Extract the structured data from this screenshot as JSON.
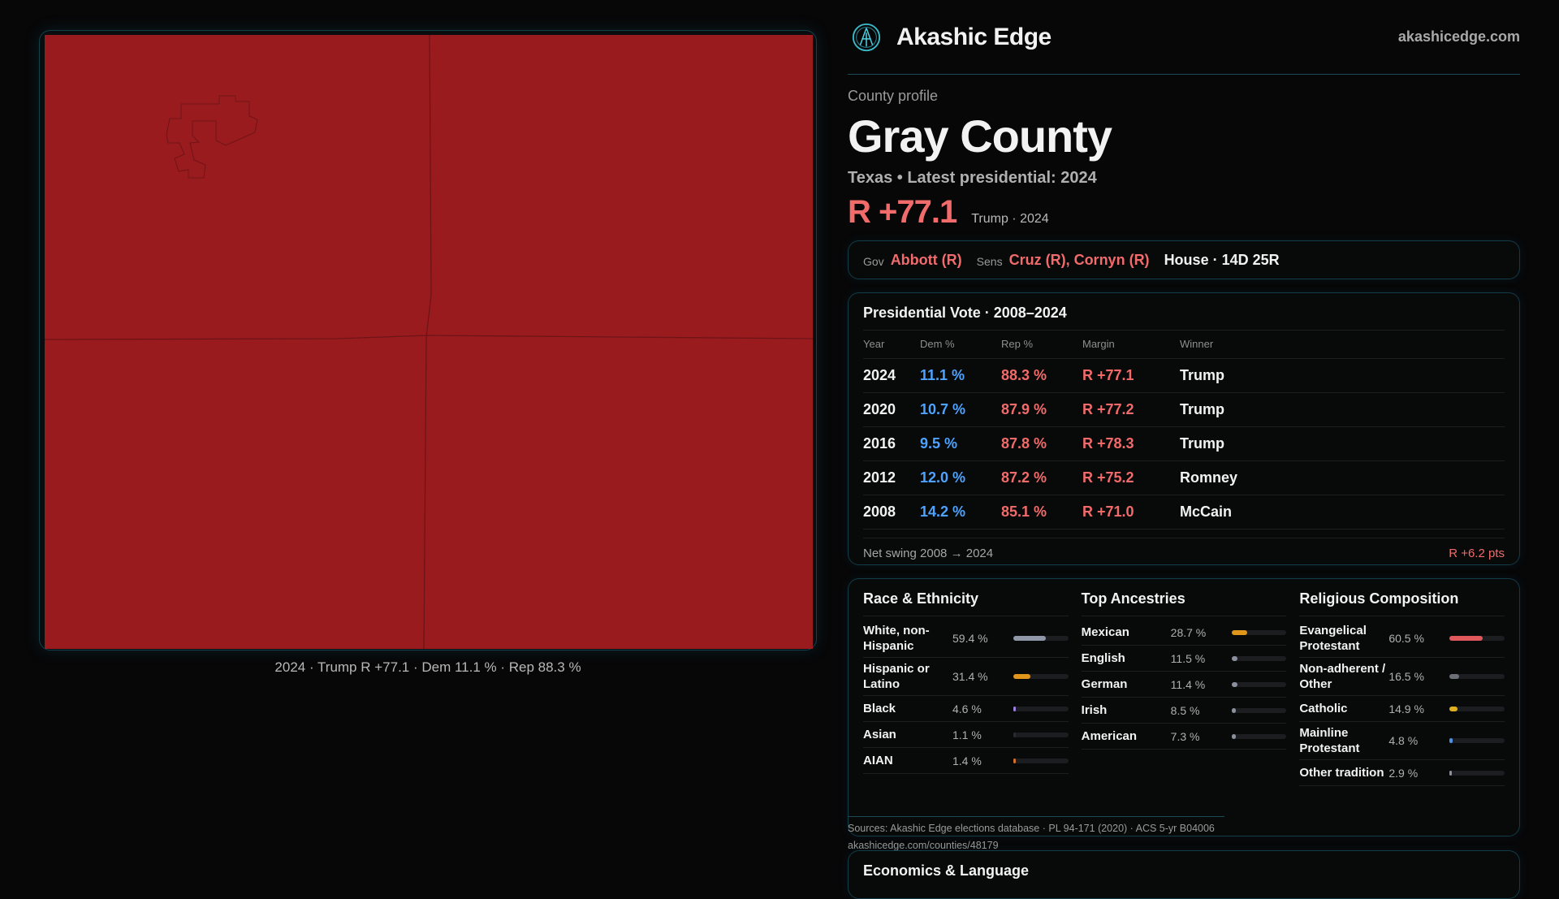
{
  "map": {
    "fill_color": "#9a1b1e",
    "caption": "2024 · Trump R +77.1 · Dem 11.1 % · Rep 88.3 %"
  },
  "header": {
    "brand": "Akashic Edge",
    "site": "akashicedge.com",
    "logo_icon": "akashic-logo-icon"
  },
  "profile": {
    "kicker": "County profile",
    "title": "Gray County",
    "subtitle": "Texas • Latest presidential: 2024",
    "margin": "R +77.1",
    "margin_winner": "Trump · 2024"
  },
  "leaders": {
    "gov_label": "Gov",
    "gov": "Abbott (R)",
    "sens_label": "Sens",
    "sens": "Cruz (R), Cornyn (R)",
    "house": "House · 14D 25R"
  },
  "presidential": {
    "title": "Presidential Vote · 2008–2024",
    "headers": [
      "Year",
      "Dem %",
      "Rep %",
      "Margin",
      "Winner"
    ],
    "rows": [
      {
        "year": "2024",
        "dem": "11.1 %",
        "rep": "88.3 %",
        "margin": "R +77.1",
        "winner": "Trump"
      },
      {
        "year": "2020",
        "dem": "10.7 %",
        "rep": "87.9 %",
        "margin": "R +77.2",
        "winner": "Trump"
      },
      {
        "year": "2016",
        "dem": "9.5 %",
        "rep": "87.8 %",
        "margin": "R +78.3",
        "winner": "Trump"
      },
      {
        "year": "2012",
        "dem": "12.0 %",
        "rep": "87.2 %",
        "margin": "R +75.2",
        "winner": "Romney"
      },
      {
        "year": "2008",
        "dem": "14.2 %",
        "rep": "85.1 %",
        "margin": "R +71.0",
        "winner": "McCain"
      }
    ],
    "swing_label": "Net swing 2008 → 2024",
    "swing_value": "R +6.2 pts"
  },
  "demographics": [
    {
      "title": "Race & Ethnicity",
      "items": [
        {
          "label": "White, non-Hispanic",
          "value": "59.4 %",
          "pct": 59.4,
          "color": "#8f97a8"
        },
        {
          "label": "Hispanic or Latino",
          "value": "31.4 %",
          "pct": 31.4,
          "color": "#e0961a"
        },
        {
          "label": "Black",
          "value": "4.6 %",
          "pct": 4.6,
          "color": "#9b7fe0"
        },
        {
          "label": "Asian",
          "value": "1.1 %",
          "pct": 1.1,
          "color": "#2a2b30"
        },
        {
          "label": "AIAN",
          "value": "1.4 %",
          "pct": 1.4,
          "color": "#d0702a"
        }
      ]
    },
    {
      "title": "Top Ancestries",
      "items": [
        {
          "label": "Mexican",
          "value": "28.7 %",
          "pct": 28.7,
          "color": "#e0961a"
        },
        {
          "label": "English",
          "value": "11.5 %",
          "pct": 11.5,
          "color": "#8a90a0"
        },
        {
          "label": "German",
          "value": "11.4 %",
          "pct": 11.4,
          "color": "#8a90a0"
        },
        {
          "label": "Irish",
          "value": "8.5 %",
          "pct": 8.5,
          "color": "#8a90a0"
        },
        {
          "label": "American",
          "value": "7.3 %",
          "pct": 7.3,
          "color": "#8a90a0"
        }
      ]
    },
    {
      "title": "Religious Composition",
      "items": [
        {
          "label": "Evangelical Protestant",
          "value": "60.5 %",
          "pct": 60.5,
          "color": "#e0585c"
        },
        {
          "label": "Non-adherent / Other",
          "value": "16.5 %",
          "pct": 16.5,
          "color": "#6b6f78"
        },
        {
          "label": "Catholic",
          "value": "14.9 %",
          "pct": 14.9,
          "color": "#e0b020"
        },
        {
          "label": "Mainline Protestant",
          "value": "4.8 %",
          "pct": 4.8,
          "color": "#4d8fe0"
        },
        {
          "label": "Other tradition",
          "value": "2.9 %",
          "pct": 2.9,
          "color": "#8a90a0"
        }
      ]
    }
  ],
  "sources": {
    "line1": "Sources: Akashic Edge elections database · PL 94-171 (2020) · ACS 5-yr B04006",
    "line2": "akashicedge.com/counties/48179"
  },
  "economics": {
    "title": "Economics & Language"
  }
}
